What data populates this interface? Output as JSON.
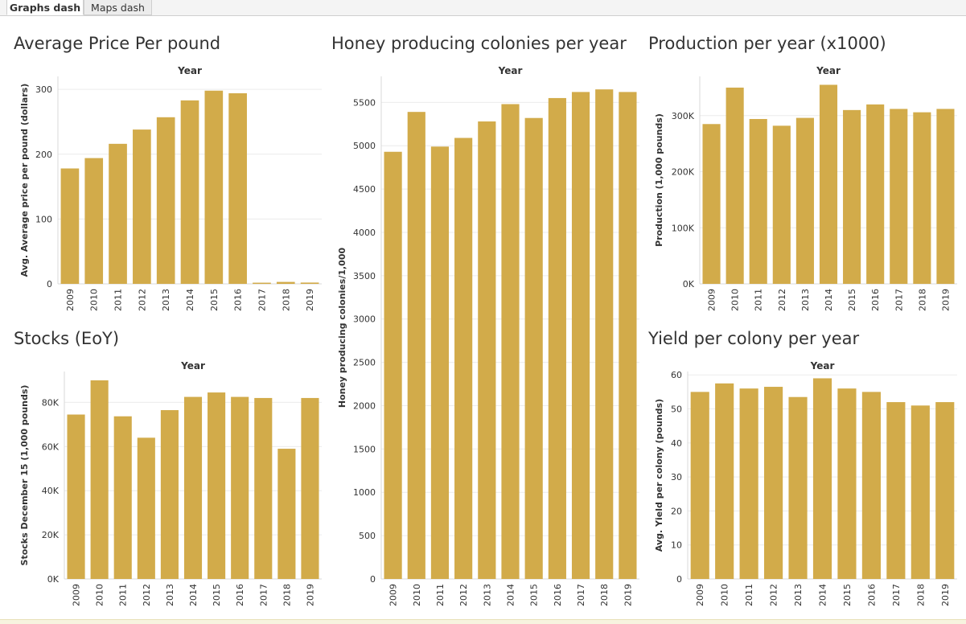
{
  "tabs": [
    {
      "label": "Graphs dash",
      "active": true
    },
    {
      "label": "Maps dash",
      "active": false
    }
  ],
  "colors": {
    "bar": "#d2ab4a",
    "grid": "#ececec",
    "axis": "#d8d8d8",
    "text": "#333333"
  },
  "panels": [
    {
      "title": "Average Price Per pound"
    },
    {
      "title": "Honey producing colonies per year"
    },
    {
      "title": "Production per year (x1000)"
    },
    {
      "title": "Stocks (EoY)"
    },
    {
      "title": "Yield per colony per year"
    }
  ],
  "chart_data": [
    {
      "type": "bar",
      "title": "Average Price Per pound",
      "column_header": "Year",
      "ylabel": "Avg. Average price per pound (dollars)",
      "categories": [
        "2009",
        "2010",
        "2011",
        "2012",
        "2013",
        "2014",
        "2015",
        "2016",
        "2017",
        "2018",
        "2019"
      ],
      "values": [
        178,
        194,
        216,
        238,
        257,
        283,
        298,
        294,
        1.8,
        3.0,
        2.0
      ],
      "ylim": [
        0,
        320
      ],
      "yticks": [
        0,
        100,
        200,
        300
      ],
      "ytick_labels": [
        "0",
        "100",
        "200",
        "300"
      ],
      "grid": true
    },
    {
      "type": "bar",
      "title": "Honey producing colonies per year",
      "column_header": "Year",
      "ylabel": "Honey producing colonies/1,000",
      "categories": [
        "2009",
        "2010",
        "2011",
        "2012",
        "2013",
        "2014",
        "2015",
        "2016",
        "2017",
        "2018",
        "2019"
      ],
      "values": [
        4930,
        5390,
        4990,
        5090,
        5280,
        5480,
        5320,
        5550,
        5620,
        5650,
        5620
      ],
      "ylim": [
        0,
        5800
      ],
      "yticks": [
        0,
        500,
        1000,
        1500,
        2000,
        2500,
        3000,
        3500,
        4000,
        4500,
        5000,
        5500
      ],
      "ytick_labels": [
        "0",
        "500",
        "1000",
        "1500",
        "2000",
        "2500",
        "3000",
        "3500",
        "4000",
        "4500",
        "5000",
        "5500"
      ],
      "grid": true
    },
    {
      "type": "bar",
      "title": "Production per year (x1000)",
      "column_header": "Year",
      "ylabel": "Production (1,000 pounds)",
      "categories": [
        "2009",
        "2010",
        "2011",
        "2012",
        "2013",
        "2014",
        "2015",
        "2016",
        "2017",
        "2018",
        "2019"
      ],
      "values": [
        285000,
        350000,
        294000,
        282000,
        296000,
        355000,
        310000,
        320000,
        312000,
        306000,
        312000
      ],
      "ylim": [
        0,
        370000
      ],
      "yticks": [
        0,
        100000,
        200000,
        300000
      ],
      "ytick_labels": [
        "0K",
        "100K",
        "200K",
        "300K"
      ],
      "grid": true
    },
    {
      "type": "bar",
      "title": "Stocks (EoY)",
      "column_header": "Year",
      "ylabel": "Stocks December 15 (1,000 pounds)",
      "categories": [
        "2009",
        "2010",
        "2011",
        "2012",
        "2013",
        "2014",
        "2015",
        "2016",
        "2017",
        "2018",
        "2019"
      ],
      "values": [
        74500,
        90000,
        73700,
        64000,
        76500,
        82500,
        84500,
        82500,
        82000,
        59000,
        82000
      ],
      "ylim": [
        0,
        94000
      ],
      "yticks": [
        0,
        20000,
        40000,
        60000,
        80000
      ],
      "ytick_labels": [
        "0K",
        "20K",
        "40K",
        "60K",
        "80K"
      ],
      "grid": true
    },
    {
      "type": "bar",
      "title": "Yield per colony per year",
      "column_header": "Year",
      "ylabel": "Avg. Yield per colony (pounds)",
      "categories": [
        "2009",
        "2010",
        "2011",
        "2012",
        "2013",
        "2014",
        "2015",
        "2016",
        "2017",
        "2018",
        "2019"
      ],
      "values": [
        55,
        57.5,
        56,
        56.5,
        53.5,
        59,
        56,
        55,
        52,
        51,
        52
      ],
      "ylim": [
        0,
        61
      ],
      "yticks": [
        0,
        10,
        20,
        30,
        40,
        50,
        60
      ],
      "ytick_labels": [
        "0",
        "10",
        "20",
        "30",
        "40",
        "50",
        "60"
      ],
      "grid": true
    }
  ]
}
